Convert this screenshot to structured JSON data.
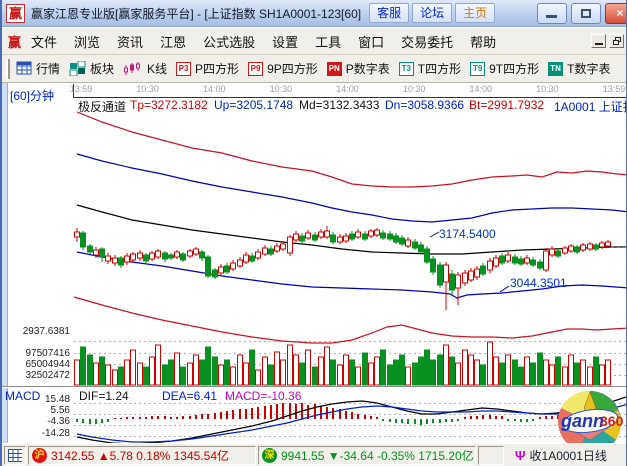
{
  "window": {
    "logo": "赢",
    "title": "赢家江恩专业版[赢家服务平台] - [上证指数  SH1A0001-123[60]",
    "buttons": {
      "service": "客服",
      "forum": "论坛",
      "home": "主页"
    }
  },
  "menu": {
    "logo": "赢",
    "items": [
      "文件",
      "浏览",
      "资讯",
      "江恩",
      "公式选股",
      "设置",
      "工具",
      "窗口",
      "交易委托",
      "帮助"
    ]
  },
  "toolbar": {
    "items": [
      {
        "icon": "quote-grid-icon",
        "label": "行情"
      },
      {
        "icon": "sector-blocks-icon",
        "label": "板块"
      },
      {
        "icon": "kline-icon",
        "label": "K线"
      },
      {
        "badge": "P3",
        "label": "P四方形"
      },
      {
        "badge": "P9",
        "label": "9P四方形"
      },
      {
        "badge": "PN",
        "label": "P数字表"
      },
      {
        "badge": "T3",
        "label": "T四方形"
      },
      {
        "badge": "T9",
        "label": "9T四方形"
      },
      {
        "badge": "TN",
        "label": "T数字表"
      }
    ]
  },
  "chart": {
    "period_label": "[60]分钟",
    "indicator_name": "极反通道",
    "params": [
      {
        "text": "Tp=3272.3182",
        "color": "#d00000"
      },
      {
        "text": "Up=3205.1748",
        "color": "#0020cc"
      },
      {
        "text": "Md=3132.3433",
        "color": "#111111"
      },
      {
        "text": "Dn=3058.9366",
        "color": "#0020cc"
      },
      {
        "text": "Bt=2991.7932",
        "color": "#d00000"
      }
    ],
    "symbol": "1A0001 上证指数",
    "time_labels": [
      "13:59",
      "10:30",
      "14:00",
      "10:30",
      "14:00",
      "10:30",
      "14:00",
      "10:30",
      "13:59"
    ],
    "price_axis_label": "2937.6381",
    "volume_axis_labels": [
      "97507416",
      "65004944",
      "32502472"
    ],
    "callout_high": "3174.5400",
    "callout_low": "3044.3501",
    "colors": {
      "up": "#d00000",
      "down": "#089020",
      "tp_bt": "#cc1122",
      "up_dn": "#0000bb",
      "md": "#000000"
    },
    "channel_lines": {
      "tp": "75,112 100,122 130,132 160,140 190,148 220,153 250,161 280,167 310,171 330,177 350,184 370,186 390,187 410,187 430,186 450,184 470,180 490,177 510,176 525,175 540,177 555,172 570,173 585,171 600,172 615,174 627,175",
      "up": "75,154 100,161 130,168 160,174 190,181 220,187 250,192 280,197 310,203 330,208 350,212 370,215 390,219 410,221 430,222 450,220 470,218 490,213 510,210 530,209 550,208 570,208 590,209 610,210 627,212",
      "md": "75,205 100,212 130,220 160,225 190,230 220,234 250,238 280,242 310,245 340,249 370,252 400,253 430,254 460,254 490,252 520,250 550,249 580,248 610,247 627,247",
      "dn": "75,252 100,257 130,262 160,266 190,271 220,276 250,280 280,284 310,287 340,288 370,289 400,290 430,292 448,294 455,298 465,295 480,294 500,293 520,291 540,289 560,286 580,285 600,286 627,288",
      "bt": "72,297 100,305 130,313 160,320 190,326 220,332 250,337 280,341 310,343 330,343 350,340 370,333 385,327 400,325 415,329 430,333 450,336 470,337 490,337 510,338 530,336 550,332 565,329 580,329 595,330 610,329 627,328"
    },
    "candles": [
      [
        75,
        228,
        232,
        237,
        242,
        "r"
      ],
      [
        81,
        231,
        233,
        247,
        250,
        "g"
      ],
      [
        88,
        244,
        246,
        252,
        254,
        "g"
      ],
      [
        94,
        247,
        250,
        255,
        258,
        "r"
      ],
      [
        100,
        247,
        249,
        257,
        262,
        "g"
      ],
      [
        106,
        253,
        256,
        261,
        264,
        "r"
      ],
      [
        113,
        255,
        258,
        263,
        266,
        "r"
      ],
      [
        119,
        256,
        258,
        265,
        268,
        "g"
      ],
      [
        125,
        253,
        256,
        262,
        265,
        "r"
      ],
      [
        131,
        252,
        254,
        260,
        263,
        "r"
      ],
      [
        138,
        250,
        253,
        258,
        261,
        "r"
      ],
      [
        144,
        253,
        255,
        261,
        263,
        "g"
      ],
      [
        150,
        251,
        253,
        259,
        261,
        "r"
      ],
      [
        156,
        249,
        251,
        257,
        259,
        "r"
      ],
      [
        163,
        251,
        253,
        259,
        262,
        "g"
      ],
      [
        169,
        253,
        255,
        258,
        260,
        "g"
      ],
      [
        175,
        250,
        252,
        257,
        259,
        "r"
      ],
      [
        181,
        252,
        254,
        260,
        262,
        "g"
      ],
      [
        188,
        249,
        251,
        256,
        258,
        "r"
      ],
      [
        194,
        247,
        249,
        254,
        256,
        "r"
      ],
      [
        200,
        250,
        252,
        258,
        261,
        "g"
      ],
      [
        206,
        255,
        257,
        276,
        278,
        "g"
      ],
      [
        213,
        268,
        270,
        277,
        279,
        "g"
      ],
      [
        219,
        264,
        267,
        273,
        275,
        "r"
      ],
      [
        225,
        263,
        266,
        272,
        274,
        "g"
      ],
      [
        231,
        260,
        263,
        269,
        271,
        "r"
      ],
      [
        238,
        257,
        260,
        266,
        268,
        "r"
      ],
      [
        244,
        252,
        255,
        262,
        264,
        "r"
      ],
      [
        250,
        253,
        256,
        261,
        263,
        "g"
      ],
      [
        256,
        249,
        252,
        258,
        260,
        "r"
      ],
      [
        263,
        245,
        248,
        254,
        256,
        "r"
      ],
      [
        269,
        246,
        249,
        254,
        256,
        "g"
      ],
      [
        275,
        243,
        246,
        251,
        253,
        "r"
      ],
      [
        281,
        241,
        244,
        249,
        251,
        "r"
      ],
      [
        288,
        235,
        237,
        253,
        256,
        "r"
      ],
      [
        294,
        231,
        234,
        240,
        242,
        "r"
      ],
      [
        300,
        233,
        236,
        241,
        243,
        "g"
      ],
      [
        306,
        230,
        233,
        238,
        240,
        "r"
      ],
      [
        313,
        232,
        235,
        240,
        242,
        "g"
      ],
      [
        319,
        229,
        232,
        237,
        239,
        "r"
      ],
      [
        325,
        226,
        231,
        237,
        239,
        "r"
      ],
      [
        331,
        232,
        235,
        242,
        244,
        "g"
      ],
      [
        338,
        234,
        237,
        242,
        244,
        "r"
      ],
      [
        344,
        233,
        236,
        241,
        243,
        "r"
      ],
      [
        350,
        231,
        234,
        239,
        241,
        "g"
      ],
      [
        356,
        229,
        232,
        237,
        239,
        "r"
      ],
      [
        363,
        231,
        234,
        239,
        241,
        "g"
      ],
      [
        369,
        229,
        231,
        236,
        238,
        "r"
      ],
      [
        375,
        228,
        230,
        235,
        237,
        "r"
      ],
      [
        381,
        230,
        233,
        238,
        240,
        "g"
      ],
      [
        388,
        231,
        234,
        239,
        241,
        "g"
      ],
      [
        394,
        233,
        236,
        242,
        244,
        "g"
      ],
      [
        400,
        235,
        238,
        244,
        246,
        "g"
      ],
      [
        406,
        237,
        240,
        246,
        248,
        "r"
      ],
      [
        413,
        239,
        242,
        248,
        250,
        "g"
      ],
      [
        419,
        242,
        245,
        252,
        254,
        "g"
      ],
      [
        425,
        246,
        249,
        262,
        264,
        "g"
      ],
      [
        431,
        256,
        259,
        272,
        275,
        "g"
      ],
      [
        438,
        262,
        265,
        285,
        288,
        "g"
      ],
      [
        444,
        262,
        265,
        282,
        310,
        "r"
      ],
      [
        450,
        270,
        274,
        290,
        295,
        "g"
      ],
      [
        456,
        272,
        275,
        288,
        305,
        "r"
      ],
      [
        463,
        270,
        273,
        283,
        286,
        "r"
      ],
      [
        469,
        268,
        271,
        280,
        282,
        "r"
      ],
      [
        475,
        266,
        269,
        277,
        280,
        "r"
      ],
      [
        481,
        263,
        266,
        274,
        276,
        "g"
      ],
      [
        488,
        258,
        261,
        270,
        273,
        "r"
      ],
      [
        494,
        255,
        258,
        266,
        268,
        "r"
      ],
      [
        500,
        253,
        256,
        263,
        265,
        "g"
      ],
      [
        506,
        252,
        255,
        261,
        263,
        "r"
      ],
      [
        513,
        254,
        257,
        263,
        265,
        "g"
      ],
      [
        519,
        256,
        259,
        264,
        266,
        "g"
      ],
      [
        525,
        255,
        258,
        263,
        265,
        "r"
      ],
      [
        531,
        257,
        260,
        265,
        267,
        "g"
      ],
      [
        538,
        259,
        262,
        268,
        270,
        "g"
      ],
      [
        544,
        248,
        251,
        270,
        272,
        "r"
      ],
      [
        550,
        246,
        249,
        255,
        257,
        "r"
      ],
      [
        556,
        248,
        251,
        256,
        258,
        "g"
      ],
      [
        563,
        246,
        248,
        253,
        255,
        "r"
      ],
      [
        569,
        244,
        246,
        251,
        253,
        "r"
      ],
      [
        575,
        245,
        247,
        252,
        254,
        "g"
      ],
      [
        581,
        243,
        245,
        250,
        252,
        "r"
      ],
      [
        588,
        242,
        244,
        249,
        251,
        "r"
      ],
      [
        594,
        243,
        245,
        249,
        251,
        "g"
      ],
      [
        600,
        241,
        243,
        247,
        249,
        "r"
      ],
      [
        606,
        240,
        242,
        246,
        248,
        "r"
      ]
    ],
    "volume_heights": [
      25,
      38,
      30,
      22,
      28,
      20,
      15,
      18,
      25,
      35,
      22,
      18,
      28,
      40,
      20,
      25,
      32,
      18,
      22,
      30,
      25,
      38,
      28,
      20,
      25,
      18,
      30,
      22,
      35,
      15,
      28,
      20,
      33,
      25,
      40,
      30,
      22,
      35,
      18,
      28,
      38,
      25,
      20,
      30,
      25,
      18,
      32,
      22,
      28,
      35,
      20,
      25,
      30,
      18,
      22,
      28,
      35,
      25,
      30,
      40,
      28,
      22,
      35,
      30,
      25,
      20,
      43,
      28,
      22,
      30,
      25,
      18,
      28,
      22,
      32,
      25,
      20,
      28,
      18,
      30,
      22,
      25,
      18,
      28,
      20,
      25
    ]
  },
  "macd": {
    "label": "MACD",
    "dif_text": "DIF=1.24",
    "dea_text": "DEA=6.41",
    "macd_text": "MACD=-10.36",
    "axis_labels": [
      "15.48",
      "5.56",
      "-4.36",
      "-14.28"
    ],
    "hist": [
      -3,
      -4,
      -5,
      -5,
      -4,
      -3,
      1,
      1,
      2,
      2,
      2,
      2,
      3,
      3,
      3,
      2,
      2,
      3,
      3,
      4,
      5,
      5,
      6,
      7,
      8,
      9,
      10,
      10,
      11,
      12,
      13,
      14,
      15,
      16,
      16,
      15,
      16,
      14,
      15,
      13,
      12,
      11,
      10,
      8,
      7,
      5,
      4,
      3,
      2,
      -2,
      -3,
      -4,
      -4,
      -5,
      -5,
      -6,
      -5,
      -4,
      -4,
      -3,
      -3,
      -2,
      2,
      3,
      3,
      4,
      4,
      3,
      3,
      -2,
      -2,
      -3,
      -3,
      -2,
      2,
      3,
      3,
      4,
      5,
      5,
      6,
      6,
      7,
      7,
      8,
      8
    ],
    "dif_line": "75,437 90,440 110,443 130,444 150,443 170,441 190,438 210,434 230,430 250,426 270,421 285,416 300,411 315,407 330,404 345,402 360,401 375,403 390,407 405,411 420,414 435,414 450,412 465,410 480,408 495,409 510,411 525,413 540,414 555,413 570,411 585,409 600,405 615,400 627,396",
    "dea_line": "75,434 90,437 110,440 130,442 150,442 170,441 190,439 210,436 230,433 250,430 270,426 285,423 300,419 315,415 330,412 345,409 360,407 375,406 390,407 405,409 420,411 435,412 450,412 465,412 480,411 495,411 510,412 525,413 540,414 555,414 570,413 585,412 600,410 615,407 627,404"
  },
  "gann_logo": {
    "gann": "gann",
    "num": "360",
    "digits": "2345678"
  },
  "statusbar": {
    "sh_icon": "沪",
    "sh_text": "3142.55 ▲5.78 0.18% 1345.54亿",
    "sz_icon": "深",
    "sz_text": "9941.55 ▼-34.64 -0.35% 1715.20亿",
    "receive_text": "收1A0001日线"
  }
}
